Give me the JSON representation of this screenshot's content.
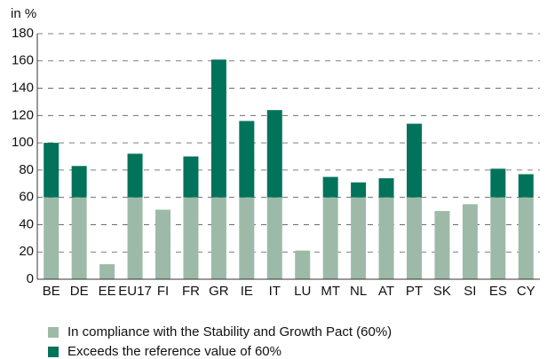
{
  "chart_data": {
    "type": "stacked_bar",
    "y_label": "in %",
    "categories": [
      "BE",
      "DE",
      "EE",
      "EU17",
      "FI",
      "FR",
      "GR",
      "IE",
      "IT",
      "LU",
      "MT",
      "NL",
      "AT",
      "PT",
      "SK",
      "SI",
      "ES",
      "CY"
    ],
    "series": [
      {
        "name": "In compliance with the Stability and Growth Pact (60%)",
        "color": "#9dbaa8",
        "values": [
          60,
          60,
          11,
          60,
          51,
          60,
          60,
          60,
          60,
          21,
          60,
          60,
          60,
          60,
          50,
          55,
          60,
          60
        ]
      },
      {
        "name": "Exceeds the reference value of 60%",
        "color": "#00735a",
        "values": [
          40,
          23,
          0,
          32,
          0,
          30,
          101,
          56,
          64,
          0,
          15,
          11,
          14,
          54,
          0,
          0,
          21,
          17
        ]
      }
    ],
    "ylim": [
      0,
      180
    ],
    "yticks": [
      0,
      20,
      40,
      60,
      80,
      100,
      120,
      140,
      160,
      180
    ],
    "grid": true
  }
}
